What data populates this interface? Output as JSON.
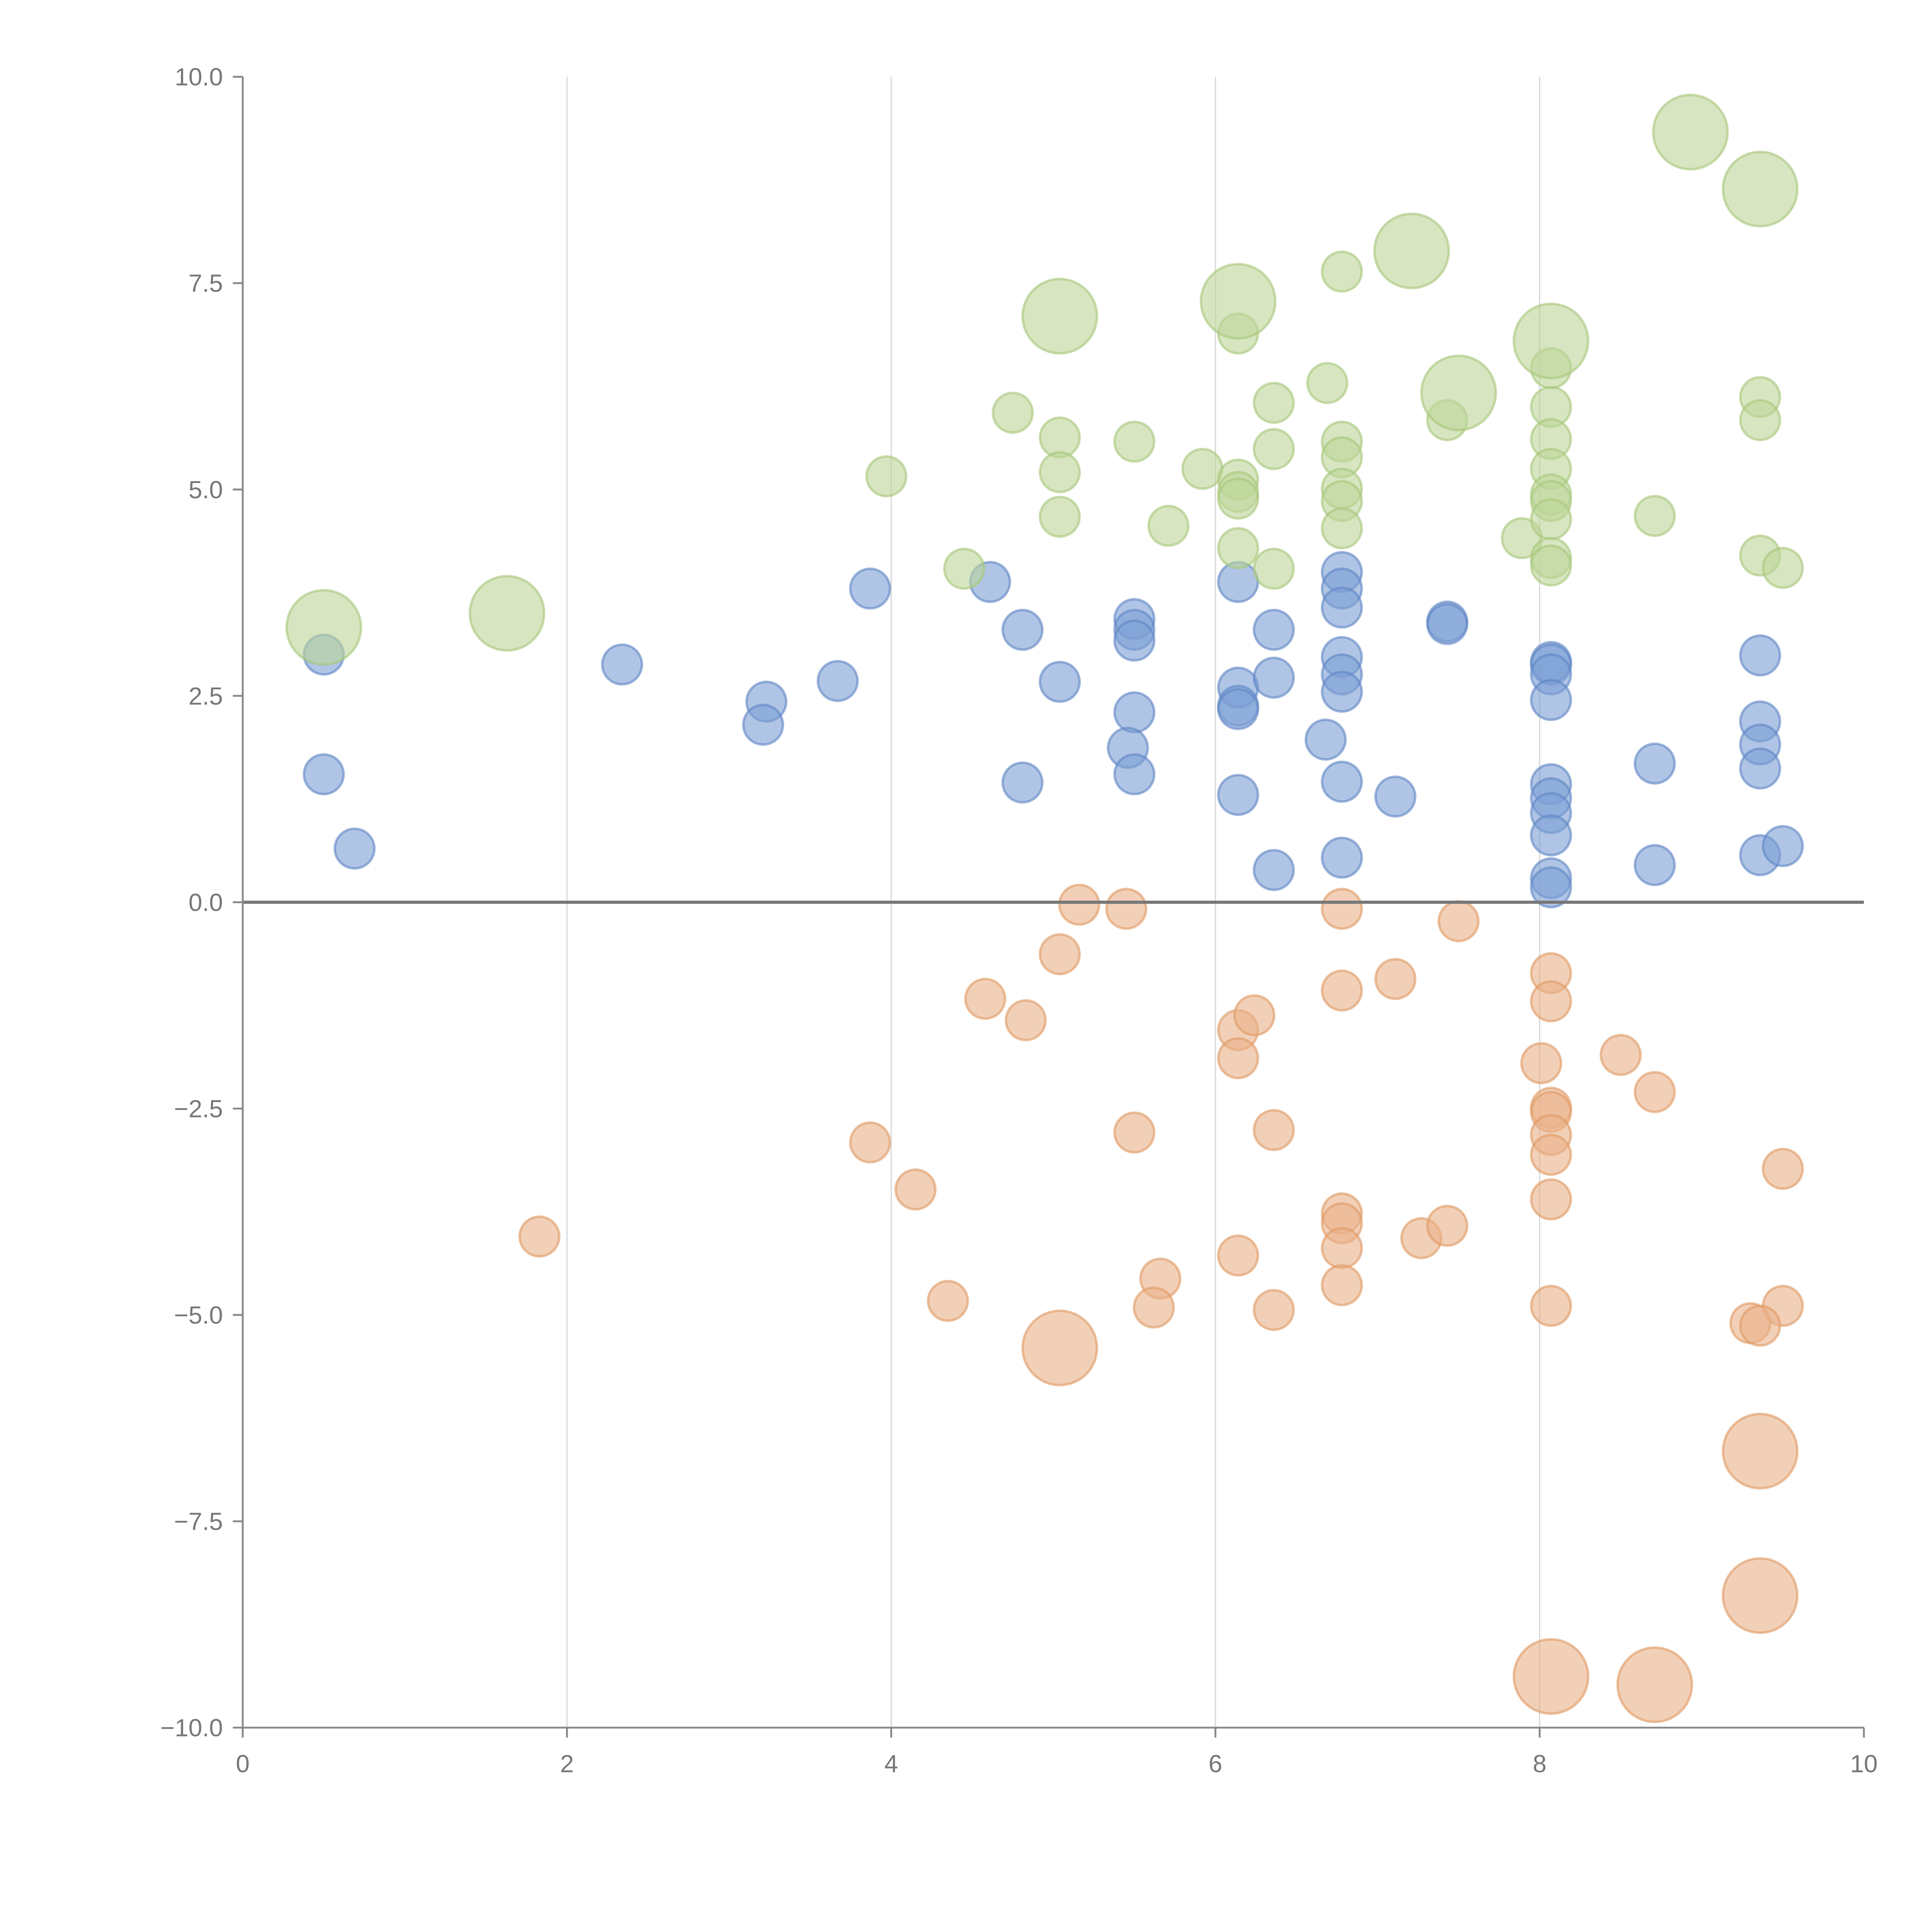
{
  "chart_data": {
    "type": "scatter",
    "title": "",
    "xlabel": "",
    "ylabel": "",
    "xlim": [
      0,
      10
    ],
    "ylim": [
      -10,
      10
    ],
    "xticks": [
      0,
      2,
      4,
      6,
      8,
      10
    ],
    "xtick_labels": [
      "0",
      "2",
      "4",
      "6",
      "8",
      "10"
    ],
    "yticks": [
      10,
      7.5,
      5,
      2.5,
      0,
      -2.5,
      -5,
      -7.5,
      -10
    ],
    "ytick_labels": [
      "10.0",
      "7.5",
      "5.0",
      "2.5",
      "0.0",
      "−2.5",
      "−5.0",
      "−7.5",
      "−10.0"
    ],
    "grid": "vertical",
    "reference_line_y": 0,
    "point_format": [
      "x",
      "y",
      "size_class"
    ],
    "series": [
      {
        "name": "blue",
        "color": "#7b9fd4",
        "stroke": "#5f86c4",
        "points": [
          [
            0.5,
            3.0,
            1
          ],
          [
            0.5,
            1.55,
            1
          ],
          [
            0.69,
            0.65,
            1
          ],
          [
            2.34,
            2.88,
            1
          ],
          [
            3.23,
            2.43,
            1
          ],
          [
            3.21,
            2.15,
            1
          ],
          [
            3.67,
            2.68,
            1
          ],
          [
            3.87,
            3.8,
            1
          ],
          [
            4.61,
            3.88,
            1
          ],
          [
            4.81,
            3.3,
            1
          ],
          [
            4.81,
            1.45,
            1
          ],
          [
            5.04,
            2.67,
            1
          ],
          [
            5.5,
            3.43,
            1
          ],
          [
            5.5,
            3.3,
            1
          ],
          [
            5.5,
            3.17,
            1
          ],
          [
            5.5,
            2.3,
            1
          ],
          [
            5.46,
            1.87,
            1
          ],
          [
            5.5,
            1.55,
            1
          ],
          [
            6.14,
            3.88,
            1
          ],
          [
            6.14,
            2.6,
            1
          ],
          [
            6.14,
            2.38,
            1
          ],
          [
            6.14,
            2.34,
            1
          ],
          [
            6.14,
            1.3,
            1
          ],
          [
            6.36,
            3.3,
            1
          ],
          [
            6.36,
            2.72,
            1
          ],
          [
            6.36,
            0.39,
            1
          ],
          [
            6.68,
            1.97,
            1
          ],
          [
            6.78,
            4.0,
            1
          ],
          [
            6.78,
            3.8,
            1
          ],
          [
            6.78,
            3.57,
            1
          ],
          [
            6.78,
            2.97,
            1
          ],
          [
            6.78,
            2.76,
            1
          ],
          [
            6.78,
            2.55,
            1
          ],
          [
            6.78,
            1.46,
            1
          ],
          [
            6.78,
            0.54,
            1
          ],
          [
            7.11,
            1.28,
            1
          ],
          [
            7.43,
            3.4,
            1
          ],
          [
            7.43,
            3.37,
            1
          ],
          [
            8.07,
            2.91,
            1
          ],
          [
            8.07,
            2.88,
            1
          ],
          [
            8.07,
            2.76,
            1
          ],
          [
            8.07,
            2.45,
            1
          ],
          [
            8.07,
            1.43,
            1
          ],
          [
            8.07,
            1.26,
            1
          ],
          [
            8.07,
            1.08,
            1
          ],
          [
            8.07,
            0.81,
            1
          ],
          [
            8.07,
            0.29,
            1
          ],
          [
            8.07,
            0.18,
            1
          ],
          [
            8.71,
            1.68,
            1
          ],
          [
            8.71,
            0.45,
            1
          ],
          [
            9.36,
            2.99,
            1
          ],
          [
            9.36,
            2.19,
            1
          ],
          [
            9.36,
            1.91,
            1
          ],
          [
            9.36,
            1.62,
            1
          ],
          [
            9.36,
            0.57,
            1
          ],
          [
            9.5,
            0.68,
            1
          ]
        ]
      },
      {
        "name": "green",
        "color": "#bcd597",
        "stroke": "#a6c77a",
        "points": [
          [
            3.97,
            5.16,
            1
          ],
          [
            4.45,
            4.04,
            1
          ],
          [
            4.75,
            5.93,
            1
          ],
          [
            5.04,
            5.63,
            1
          ],
          [
            5.04,
            5.21,
            1
          ],
          [
            5.04,
            4.67,
            1
          ],
          [
            5.5,
            5.58,
            1
          ],
          [
            5.71,
            4.56,
            1
          ],
          [
            5.92,
            5.25,
            1
          ],
          [
            6.14,
            6.89,
            1
          ],
          [
            6.14,
            5.12,
            1
          ],
          [
            6.14,
            4.97,
            1
          ],
          [
            6.14,
            4.89,
            1
          ],
          [
            6.14,
            4.29,
            1
          ],
          [
            6.36,
            6.05,
            1
          ],
          [
            6.36,
            5.49,
            1
          ],
          [
            6.36,
            4.04,
            1
          ],
          [
            6.69,
            6.29,
            1
          ],
          [
            6.78,
            7.64,
            1
          ],
          [
            6.78,
            5.58,
            1
          ],
          [
            6.78,
            5.39,
            1
          ],
          [
            6.78,
            5.01,
            1
          ],
          [
            6.78,
            4.86,
            1
          ],
          [
            6.78,
            4.53,
            1
          ],
          [
            7.43,
            5.84,
            1
          ],
          [
            7.89,
            4.41,
            1
          ],
          [
            8.07,
            6.47,
            1
          ],
          [
            8.07,
            6.0,
            1
          ],
          [
            8.07,
            5.61,
            1
          ],
          [
            8.07,
            5.25,
            1
          ],
          [
            8.07,
            4.94,
            1
          ],
          [
            8.07,
            4.86,
            1
          ],
          [
            8.07,
            4.64,
            1
          ],
          [
            8.07,
            4.17,
            1
          ],
          [
            8.07,
            4.08,
            1
          ],
          [
            8.71,
            4.68,
            1
          ],
          [
            9.36,
            6.12,
            1
          ],
          [
            9.36,
            5.84,
            1
          ],
          [
            9.36,
            4.2,
            1
          ],
          [
            9.5,
            4.05,
            1
          ],
          [
            0.5,
            3.33,
            2
          ],
          [
            1.63,
            3.5,
            2
          ],
          [
            5.04,
            7.1,
            2
          ],
          [
            6.14,
            7.28,
            2
          ],
          [
            7.21,
            7.89,
            2
          ],
          [
            7.5,
            6.17,
            2
          ],
          [
            8.07,
            6.8,
            2
          ],
          [
            8.93,
            9.33,
            2
          ],
          [
            9.36,
            8.64,
            2
          ]
        ]
      },
      {
        "name": "orange",
        "color": "#eab189",
        "stroke": "#e09a63",
        "points": [
          [
            5.16,
            -0.03,
            1
          ],
          [
            5.45,
            -0.08,
            1
          ],
          [
            5.04,
            -0.63,
            1
          ],
          [
            4.58,
            -1.17,
            1
          ],
          [
            4.83,
            -1.43,
            1
          ],
          [
            6.14,
            -1.55,
            1
          ],
          [
            6.24,
            -1.37,
            1
          ],
          [
            6.14,
            -1.89,
            1
          ],
          [
            6.78,
            -0.08,
            1
          ],
          [
            6.78,
            -1.07,
            1
          ],
          [
            7.11,
            -0.93,
            1
          ],
          [
            7.5,
            -0.23,
            1
          ],
          [
            8.07,
            -0.86,
            1
          ],
          [
            8.07,
            -1.2,
            1
          ],
          [
            8.01,
            -1.95,
            1
          ],
          [
            8.5,
            -1.85,
            1
          ],
          [
            8.71,
            -2.3,
            1
          ],
          [
            8.07,
            -2.49,
            1
          ],
          [
            8.07,
            -2.54,
            1
          ],
          [
            8.07,
            -2.82,
            1
          ],
          [
            8.07,
            -3.06,
            1
          ],
          [
            8.07,
            -3.6,
            1
          ],
          [
            8.07,
            -4.89,
            1
          ],
          [
            3.87,
            -2.91,
            1
          ],
          [
            4.15,
            -3.48,
            1
          ],
          [
            1.83,
            -4.05,
            1
          ],
          [
            5.5,
            -2.79,
            1
          ],
          [
            6.36,
            -2.76,
            1
          ],
          [
            4.35,
            -4.83,
            1
          ],
          [
            5.66,
            -4.56,
            1
          ],
          [
            5.62,
            -4.91,
            1
          ],
          [
            6.14,
            -4.28,
            1
          ],
          [
            6.36,
            -4.94,
            1
          ],
          [
            6.78,
            -3.77,
            1
          ],
          [
            6.78,
            -3.89,
            1
          ],
          [
            6.78,
            -4.19,
            1
          ],
          [
            6.78,
            -4.64,
            1
          ],
          [
            7.27,
            -4.07,
            1
          ],
          [
            7.43,
            -3.92,
            1
          ],
          [
            9.5,
            -3.23,
            1
          ],
          [
            9.5,
            -4.89,
            1
          ],
          [
            9.3,
            -5.1,
            1
          ],
          [
            9.36,
            -5.13,
            1
          ],
          [
            5.04,
            -5.4,
            2
          ],
          [
            9.36,
            -6.65,
            2
          ],
          [
            9.36,
            -8.4,
            2
          ],
          [
            8.07,
            -9.38,
            2
          ],
          [
            8.71,
            -9.48,
            2
          ]
        ]
      }
    ]
  }
}
